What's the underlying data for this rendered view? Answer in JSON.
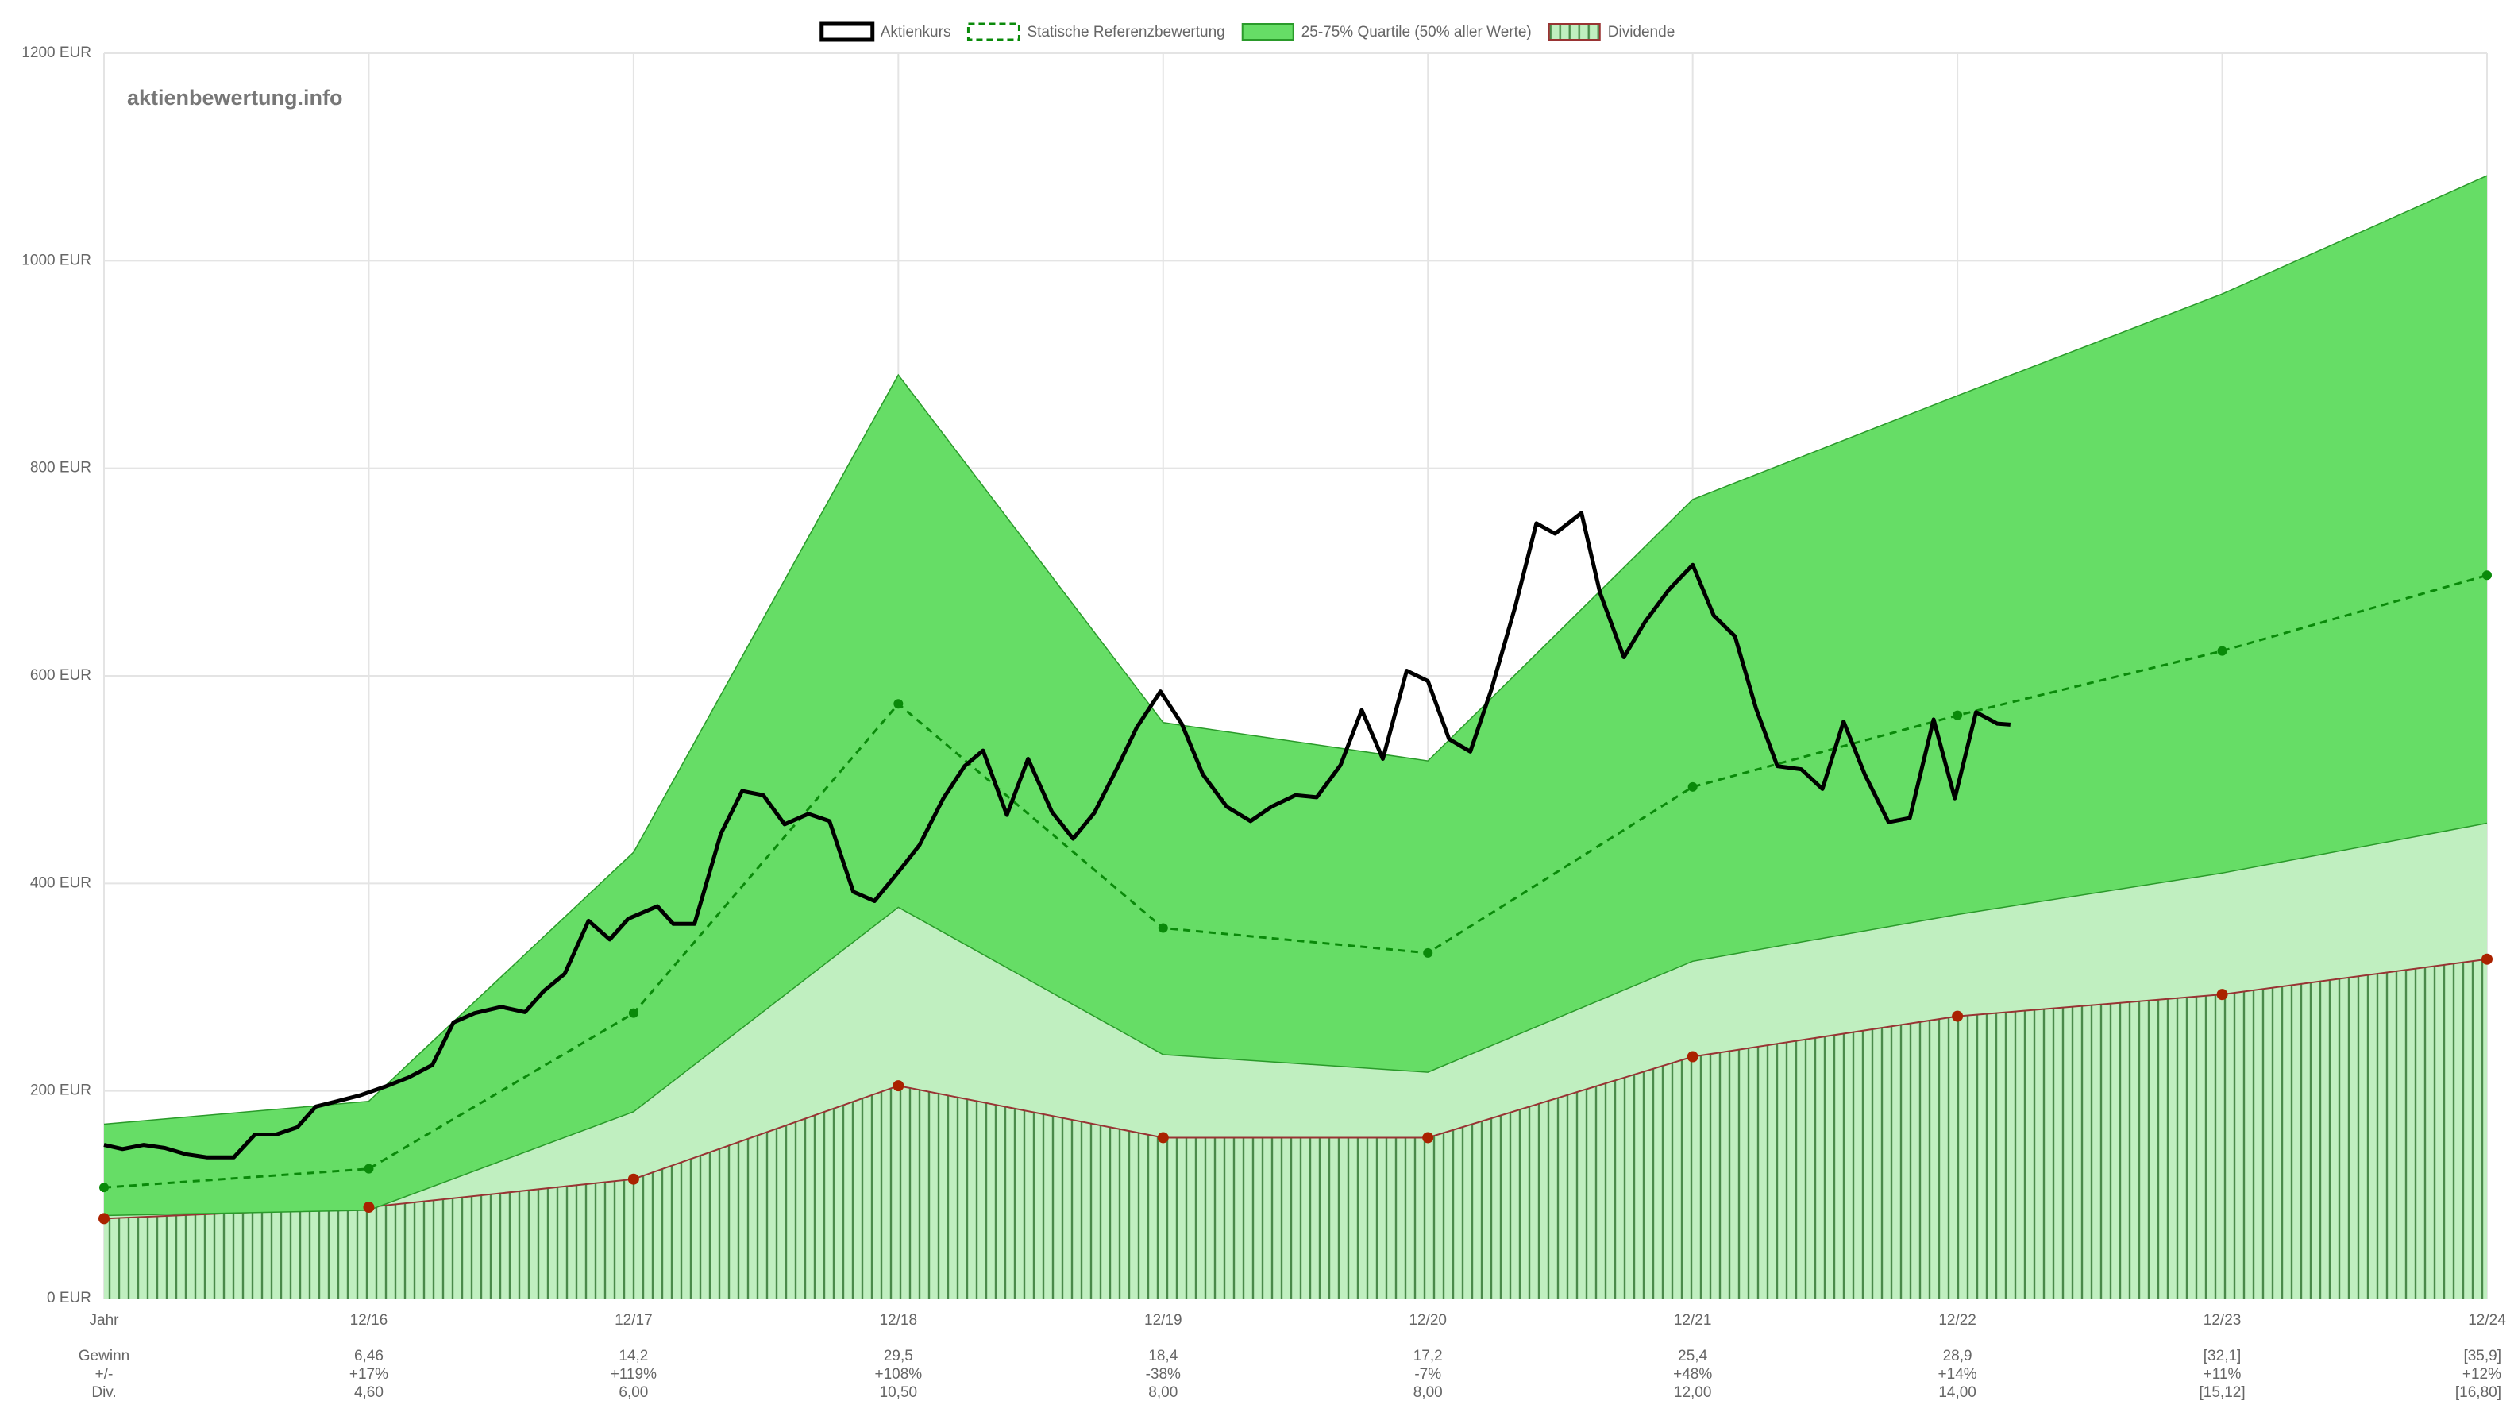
{
  "chart_data": {
    "type": "line",
    "watermark": "aktienbewertung.info",
    "xlim": [
      0,
      9
    ],
    "xticks": [
      {
        "value": 0,
        "label": "Jahr"
      },
      {
        "value": 1,
        "label": "12/16"
      },
      {
        "value": 2,
        "label": "12/17"
      },
      {
        "value": 3,
        "label": "12/18"
      },
      {
        "value": 4,
        "label": "12/19"
      },
      {
        "value": 5,
        "label": "12/20"
      },
      {
        "value": 6,
        "label": "12/21"
      },
      {
        "value": 7,
        "label": "12/22"
      },
      {
        "value": 8,
        "label": "12/23"
      },
      {
        "value": 9,
        "label": "12/24"
      }
    ],
    "ylim": [
      0,
      1200
    ],
    "yticks": [
      {
        "value": 0,
        "label": "0 EUR"
      },
      {
        "value": 200,
        "label": "200 EUR"
      },
      {
        "value": 400,
        "label": "400 EUR"
      },
      {
        "value": 600,
        "label": "600 EUR"
      },
      {
        "value": 800,
        "label": "800 EUR"
      },
      {
        "value": 1000,
        "label": "1000 EUR"
      },
      {
        "value": 1200,
        "label": "1200 EUR"
      }
    ],
    "grid": true,
    "series": [
      {
        "name": "Aktienkurs",
        "color": "#000000",
        "x": [
          0,
          0.07,
          0.15,
          0.23,
          0.31,
          0.39,
          0.49,
          0.57,
          0.65,
          0.73,
          0.8,
          0.88,
          0.97,
          1.06,
          1.15,
          1.24,
          1.32,
          1.4,
          1.5,
          1.59,
          1.66,
          1.74,
          1.83,
          1.91,
          1.98,
          2.09,
          2.15,
          2.23,
          2.33,
          2.41,
          2.49,
          2.57,
          2.66,
          2.74,
          2.83,
          2.91,
          3,
          3.08,
          3.17,
          3.25,
          3.32,
          3.41,
          3.49,
          3.58,
          3.66,
          3.74,
          3.83,
          3.9,
          3.99,
          4.07,
          4.15,
          4.24,
          4.33,
          4.41,
          4.5,
          4.58,
          4.67,
          4.75,
          4.83,
          4.92,
          5,
          5.08,
          5.16,
          5.24,
          5.33,
          5.41,
          5.48,
          5.58,
          5.65,
          5.74,
          5.82,
          5.91,
          6,
          6.08,
          6.16,
          6.24,
          6.32,
          6.41,
          6.49,
          6.57,
          6.65,
          6.74,
          6.82,
          6.91,
          6.99,
          7.07,
          7.15,
          7.2
        ],
        "values": [
          148,
          144,
          148,
          145,
          139,
          136,
          136,
          158,
          158,
          165,
          185,
          190,
          196,
          204,
          213,
          225,
          266,
          275,
          281,
          276,
          296,
          313,
          364,
          346,
          366,
          378,
          361,
          361,
          448,
          489,
          485,
          457,
          467,
          460,
          392,
          383,
          411,
          437,
          482,
          513,
          528,
          466,
          520,
          469,
          443,
          468,
          513,
          550,
          585,
          554,
          505,
          474,
          460,
          474,
          485,
          483,
          514,
          567,
          520,
          605,
          595,
          539,
          527,
          587,
          667,
          747,
          737,
          757,
          680,
          618,
          652,
          683,
          707,
          658,
          638,
          568,
          513,
          510,
          491,
          556,
          505,
          459,
          463,
          558,
          482,
          565,
          554,
          553
        ]
      },
      {
        "name": "Statische Referenzbewertung",
        "color": "#0a8a0a",
        "dashed": true,
        "x": [
          0,
          1,
          2,
          3,
          4,
          5,
          6,
          7,
          8,
          9
        ],
        "values": [
          107,
          125,
          275,
          573,
          357,
          333,
          493,
          562,
          624,
          697
        ]
      },
      {
        "name": "25-75% Quartile (50% aller Werte)",
        "color": "#66dd66",
        "edge": "#2a9a2a",
        "under_color": "#c0efc0",
        "x": [
          0,
          1,
          2,
          3,
          4,
          5,
          6,
          7,
          8,
          9
        ],
        "values": [
          168,
          190,
          430,
          890,
          555,
          518,
          770,
          870,
          968,
          1082
        ],
        "lower": [
          80,
          85,
          180,
          377,
          235,
          218,
          325,
          370,
          410,
          458
        ]
      },
      {
        "name": "Dividende",
        "color": "#993333",
        "hatch": "#4a8a4a",
        "x": [
          0,
          1,
          2,
          3,
          4,
          5,
          6,
          7,
          8,
          9
        ],
        "values": [
          77,
          88,
          115,
          205,
          155,
          155,
          233,
          272,
          293,
          327
        ]
      }
    ],
    "table": {
      "row_labels": [
        "Gewinn",
        "+/-",
        "Div."
      ],
      "rows": [
        [
          "6,46",
          "14,2",
          "29,5",
          "18,4",
          "17,2",
          "25,4",
          "28,9",
          "[32,1]",
          "[35,9]"
        ],
        [
          "+17%",
          "+119%",
          "+108%",
          "-38%",
          "-7%",
          "+48%",
          "+14%",
          "+11%",
          "+12%"
        ],
        [
          "4,60",
          "6,00",
          "10,50",
          "8,00",
          "8,00",
          "12,00",
          "14,00",
          "[15,12]",
          "[16,80]"
        ]
      ]
    }
  }
}
